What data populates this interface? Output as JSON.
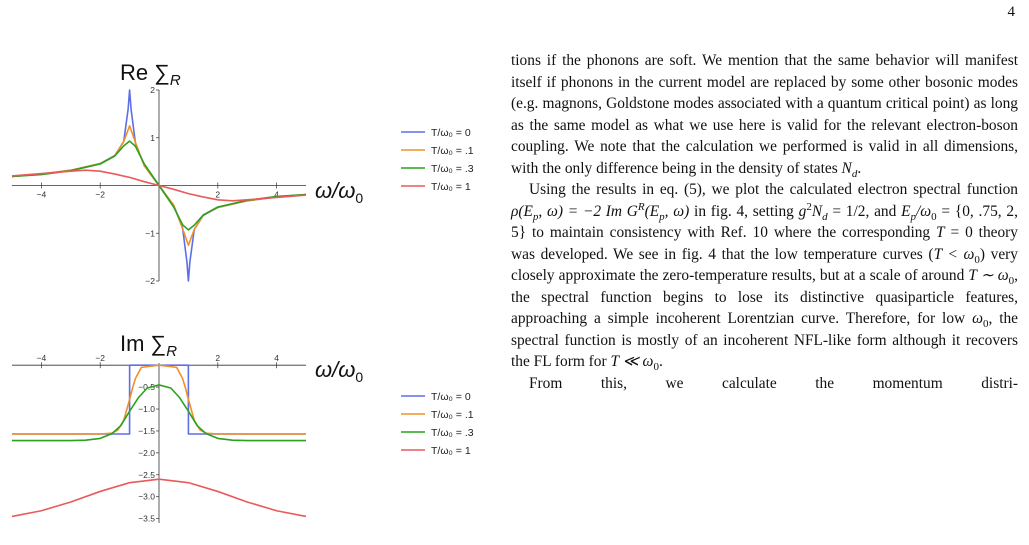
{
  "page": {
    "number": "4"
  },
  "figure": {
    "top_plot": {
      "title_base": "Re ∑",
      "title_sub": "R",
      "x_axis_label_base": "ω/ω",
      "x_axis_label_sub": "0",
      "x_ticks": [
        "-4",
        "-2",
        "2",
        "4"
      ],
      "y_ticks": [
        "2",
        "1",
        "-1",
        "-2"
      ]
    },
    "bottom_plot": {
      "title_base": "Im ∑",
      "title_sub": "R",
      "x_axis_label_base": "ω/ω",
      "x_axis_label_sub": "0",
      "x_ticks": [
        "-4",
        "-2",
        "2",
        "4"
      ],
      "y_ticks": [
        "-0.5",
        "-1.0",
        "-1.5",
        "-2.0",
        "-2.5",
        "-3.0",
        "-3.5"
      ]
    },
    "legend": {
      "entries": [
        {
          "label": "T/ω₀ = 0",
          "color": "#5e6ee6"
        },
        {
          "label": "T/ω₀ = .1",
          "color": "#f0902a"
        },
        {
          "label": "T/ω₀ = .3",
          "color": "#2aa21f"
        },
        {
          "label": "T/ω₀ = 1",
          "color": "#ea5a5a"
        }
      ]
    }
  },
  "chart_data": [
    {
      "type": "line",
      "title": "Re ∑R",
      "xlabel": "ω/ω0",
      "ylabel": "",
      "xlim": [
        -5,
        5
      ],
      "ylim": [
        -2,
        2
      ],
      "series": [
        {
          "name": "T/ω₀ = 0",
          "x": [
            -5,
            -4,
            -3,
            -2,
            -1.5,
            -1.2,
            -1.05,
            -1,
            -0.95,
            -0.8,
            -0.5,
            0,
            0.5,
            0.8,
            0.95,
            1,
            1.05,
            1.2,
            1.5,
            2,
            3,
            4,
            5
          ],
          "values": [
            0.19,
            0.24,
            0.32,
            0.46,
            0.63,
            0.92,
            1.6,
            2.0,
            1.6,
            0.88,
            0.42,
            0,
            -0.42,
            -0.88,
            -1.6,
            -2.0,
            -1.6,
            -0.92,
            -0.63,
            -0.46,
            -0.32,
            -0.24,
            -0.19
          ]
        },
        {
          "name": "T/ω₀ = .1",
          "x": [
            -5,
            -4,
            -3,
            -2,
            -1.5,
            -1.2,
            -1,
            -0.8,
            -0.5,
            0,
            0.5,
            0.8,
            1,
            1.2,
            1.5,
            2,
            3,
            4,
            5
          ],
          "values": [
            0.19,
            0.24,
            0.32,
            0.46,
            0.62,
            0.92,
            1.25,
            0.9,
            0.41,
            0,
            -0.41,
            -0.9,
            -1.25,
            -0.92,
            -0.62,
            -0.46,
            -0.32,
            -0.24,
            -0.19
          ]
        },
        {
          "name": "T/ω₀ = .3",
          "x": [
            -5,
            -4,
            -3,
            -2,
            -1.5,
            -1.2,
            -1,
            -0.8,
            -0.5,
            0,
            0.5,
            0.8,
            1,
            1.2,
            1.5,
            2,
            3,
            4,
            5
          ],
          "values": [
            0.19,
            0.23,
            0.31,
            0.45,
            0.62,
            0.83,
            0.93,
            0.82,
            0.45,
            0,
            -0.45,
            -0.82,
            -0.93,
            -0.83,
            -0.62,
            -0.45,
            -0.31,
            -0.23,
            -0.19
          ]
        },
        {
          "name": "T/ω₀ = 1",
          "x": [
            -5,
            -4,
            -3,
            -2.5,
            -2,
            -1.5,
            -1,
            -0.5,
            0,
            0.5,
            1,
            1.5,
            2,
            2.5,
            3,
            4,
            5
          ],
          "values": [
            0.2,
            0.25,
            0.3,
            0.32,
            0.3,
            0.24,
            0.17,
            0.08,
            0,
            -0.08,
            -0.17,
            -0.24,
            -0.3,
            -0.32,
            -0.3,
            -0.25,
            -0.2
          ]
        }
      ]
    },
    {
      "type": "line",
      "title": "Im ∑R",
      "xlabel": "ω/ω0",
      "ylabel": "",
      "xlim": [
        -5,
        5
      ],
      "ylim": [
        -3.6,
        0.05
      ],
      "series": [
        {
          "name": "T/ω₀ = 0",
          "x": [
            -5,
            -1.001,
            -1,
            -0.999,
            0.999,
            1,
            1.001,
            5
          ],
          "values": [
            -1.57,
            -1.57,
            -0.78,
            0,
            0,
            -0.78,
            -1.57,
            -1.57
          ]
        },
        {
          "name": "T/ω₀ = .1",
          "x": [
            -5,
            -2,
            -1.6,
            -1.4,
            -1.2,
            -1.1,
            -1,
            -0.9,
            -0.8,
            -0.6,
            0,
            0.6,
            0.8,
            0.9,
            1,
            1.1,
            1.2,
            1.4,
            1.6,
            2,
            5
          ],
          "values": [
            -1.57,
            -1.57,
            -1.55,
            -1.48,
            -1.26,
            -1.02,
            -0.78,
            -0.52,
            -0.3,
            -0.05,
            0,
            -0.05,
            -0.3,
            -0.52,
            -0.78,
            -1.02,
            -1.26,
            -1.48,
            -1.55,
            -1.57,
            -1.57
          ]
        },
        {
          "name": "T/ω₀ = .3",
          "x": [
            -5,
            -3,
            -2.5,
            -2,
            -1.6,
            -1.3,
            -1,
            -0.7,
            -0.4,
            0,
            0.4,
            0.7,
            1,
            1.3,
            1.6,
            2,
            2.5,
            3,
            5
          ],
          "values": [
            -1.72,
            -1.72,
            -1.71,
            -1.67,
            -1.56,
            -1.38,
            -1.05,
            -0.74,
            -0.52,
            -0.45,
            -0.52,
            -0.74,
            -1.05,
            -1.38,
            -1.56,
            -1.67,
            -1.71,
            -1.72,
            -1.72
          ]
        },
        {
          "name": "T/ω₀ = 1",
          "x": [
            -5,
            -4,
            -3,
            -2,
            -1,
            0,
            1,
            2,
            3,
            4,
            5
          ],
          "values": [
            -3.45,
            -3.32,
            -3.12,
            -2.88,
            -2.68,
            -2.6,
            -2.68,
            -2.88,
            -3.12,
            -3.32,
            -3.45
          ]
        }
      ]
    }
  ],
  "text": {
    "p1": "tions if the phonons are soft. We mention that the same behavior will manifest itself if phonons in the current model are replaced by some other bosonic modes (e.g. magnons, Goldstone modes associated with a quantum critical point) as long as the same model as what we use here is valid for the relevant electron-boson coupling. We note that the calculation we performed is valid in all dimensions, with the only difference being in the density of states",
    "p1_nd": "N",
    "p1_nd_sub": "d",
    "p1_end": ".",
    "p2_a": "Using the results in eq. (5), we plot the calculated electron spectral function",
    "p2_rho": "ρ(E",
    "p2_p1": "p",
    "p2_rho2": ", ω) = −2 Im G",
    "p2_R": "R",
    "p2_rho3": "(E",
    "p2_p2": "p",
    "p2_rho4": ", ω)",
    "p2_b": "in fig. 4, setting",
    "p2_g": "g",
    "p2_g2": "2",
    "p2_nd": "N",
    "p2_nd_sub": "d",
    "p2_c": "= 1/2, and",
    "p2_ep": "E",
    "p2_ep_sub": "p",
    "p2_d": "/ω",
    "p2_d_sub": "0",
    "p2_e": "= {0, .75, 2, 5} to maintain consistency with Ref. 10 where the corresponding",
    "p2_t0": "T",
    "p2_f": "= 0 theory was developed. We see in fig. 4 that the low temperature curves (",
    "p2_t1": "T < ω",
    "p2_t1_sub": "0",
    "p2_g3": ") very closely approximate the zero-temperature results, but at a scale of around",
    "p2_t2": "T ∼ ω",
    "p2_t2_sub": "0",
    "p2_h": ", the spectral function begins to lose its distinctive quasiparticle features, approaching a simple incoherent Lorentzian curve. Therefore, for low",
    "p2_w": "ω",
    "p2_w_sub": "0",
    "p2_i": ", the spectral function is mostly of an incoherent NFL-like form although it recovers the FL form for",
    "p2_t3": "T ≪ ω",
    "p2_t3_sub": "0",
    "p2_j": ".",
    "p3_start": "From this, we calculate the momentum distri-"
  }
}
